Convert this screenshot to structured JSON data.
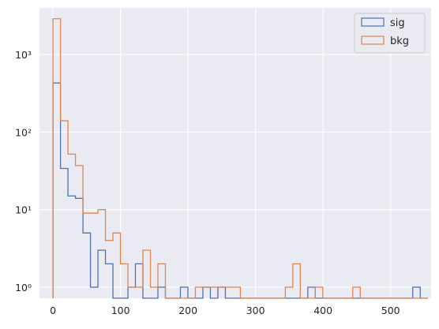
{
  "chart_data": {
    "type": "histogram",
    "title": "",
    "xlabel": "",
    "ylabel": "",
    "yscale": "log",
    "xlim": [
      -20,
      560
    ],
    "ylim": [
      0.72,
      4000
    ],
    "grid": true,
    "legend_position": "top-right",
    "xticks": [
      0,
      100,
      200,
      300,
      400,
      500
    ],
    "xtick_labels": [
      "0",
      "100",
      "200",
      "300",
      "400",
      "500"
    ],
    "yticks": [
      1,
      10,
      100,
      1000
    ],
    "ytick_labels": [
      "10⁰",
      "10¹",
      "10²",
      "10³"
    ],
    "bin_edges": [
      0,
      11.1,
      22.2,
      33.3,
      44.4,
      55.5,
      66.6,
      77.7,
      88.8,
      99.9,
      111,
      122.1,
      133.2,
      144.3,
      155.4,
      166.5,
      177.6,
      188.7,
      199.8,
      210.9,
      222,
      233.1,
      244.2,
      255.3,
      266.4,
      277.5,
      288.6,
      299.7,
      310.8,
      321.9,
      333,
      344.1,
      355.2,
      366.3,
      377.4,
      388.5,
      399.6,
      410.7,
      421.8,
      432.9,
      444,
      455.1,
      466.2,
      477.3,
      488.4,
      499.5,
      510.6,
      521.7,
      532.8,
      543.9,
      555
    ],
    "series": [
      {
        "name": "sig",
        "color": "#4c72b0",
        "counts": [
          430,
          34,
          15,
          14,
          5,
          1,
          3,
          2,
          0,
          0,
          1,
          2,
          0,
          0,
          1,
          0,
          0,
          1,
          0,
          0,
          1,
          0,
          1,
          0,
          0,
          0,
          0,
          0,
          0,
          0,
          0,
          0,
          0,
          0,
          1,
          0,
          0,
          0,
          0,
          0,
          0,
          0,
          0,
          0,
          0,
          0,
          0,
          0,
          1,
          0
        ]
      },
      {
        "name": "bkg",
        "color": "#dd8452",
        "counts": [
          2900,
          140,
          52,
          37,
          9,
          9,
          10,
          4,
          5,
          2,
          1,
          1,
          3,
          1,
          2,
          0,
          0,
          0,
          0,
          1,
          1,
          1,
          1,
          1,
          1,
          0,
          0,
          0,
          0,
          0,
          0,
          1,
          2,
          0,
          0,
          1,
          0,
          0,
          0,
          0,
          1,
          0,
          0,
          0,
          0,
          0,
          0,
          0,
          0,
          0
        ]
      }
    ]
  }
}
